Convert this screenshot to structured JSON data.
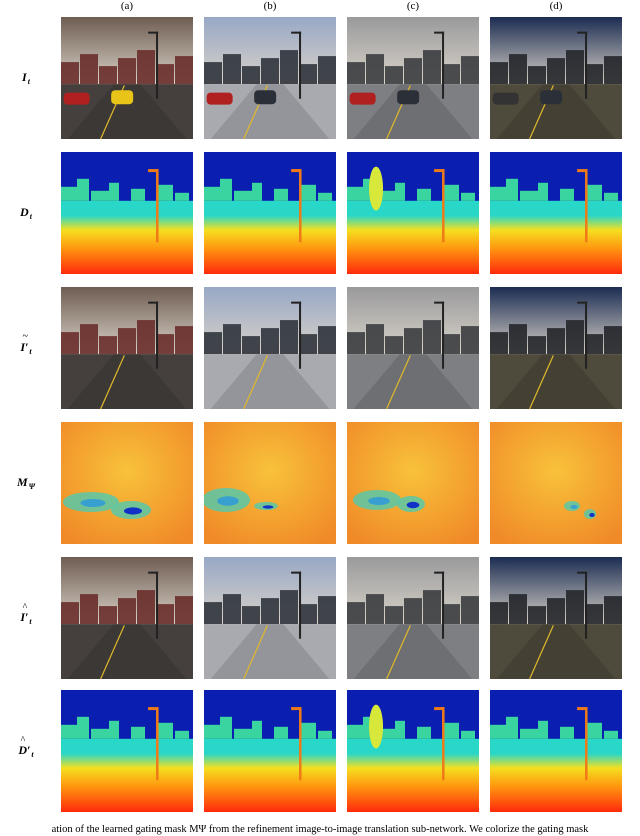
{
  "columns": [
    "(a)",
    "(b)",
    "(c)",
    "(d)"
  ],
  "rows": [
    {
      "symbol": "I",
      "sub": "t",
      "prime": false,
      "accent": "none",
      "kind": "rgb"
    },
    {
      "symbol": "D",
      "sub": "t",
      "prime": false,
      "accent": "none",
      "kind": "depth"
    },
    {
      "symbol": "I",
      "sub": "t",
      "prime": true,
      "accent": "tilde",
      "kind": "rgb"
    },
    {
      "symbol": "M",
      "sub": "Ψ",
      "prime": false,
      "accent": "none",
      "kind": "gate"
    },
    {
      "symbol": "I",
      "sub": "t",
      "prime": true,
      "accent": "hat",
      "kind": "rgb"
    },
    {
      "symbol": "D",
      "sub": "t",
      "prime": true,
      "accent": "hat",
      "kind": "depth"
    }
  ],
  "caption": "ation of the learned gating mask MΨ from the refinement image-to-image translation sub-network. We colorize the gating mask",
  "colors": {
    "depth_sky": "#0a1fb0",
    "depth_far": "#28d7c8",
    "depth_near": "#ff2a0c",
    "gate_high": "#f8c23a",
    "gate_low": "#1030c8"
  },
  "scene_palettes": [
    {
      "name": "sunset",
      "sky": "#6f5d52",
      "ground": "#45403e",
      "buildings": "#6a2e2a"
    },
    {
      "name": "overcast-blue",
      "sky": "#98a8c6",
      "ground": "#a9aab0",
      "buildings": "#30343c"
    },
    {
      "name": "grey",
      "sky": "#9a9a9c",
      "ground": "#7d7f82",
      "buildings": "#3b3d40"
    },
    {
      "name": "night",
      "sky": "#1c2d52",
      "ground": "#4e4a3c",
      "buildings": "#24262a"
    }
  ]
}
